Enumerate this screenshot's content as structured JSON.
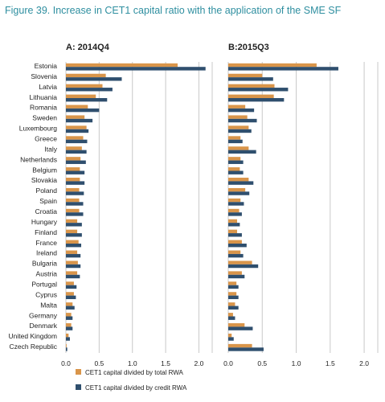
{
  "figure_title": "Figure 39. Increase in CET1 capital ratio with the application of the SME SF",
  "colors": {
    "total_rwa": "#d9954a",
    "credit_rwa": "#2f4f6e",
    "grid": "#c9c9c9",
    "title": "#2f8fa0"
  },
  "chart_data": [
    {
      "type": "bar",
      "orientation": "horizontal",
      "title": "A: 2014Q4",
      "categories": [
        "Estonia",
        "Slovenia",
        "Latvia",
        "Lithuania",
        "Romania",
        "Sweden",
        "Luxembourg",
        "Greece",
        "Italy",
        "Netherlands",
        "Belgium",
        "Slovakia",
        "Poland",
        "Spain",
        "Croatia",
        "Hungary",
        "Finland",
        "France",
        "Ireland",
        "Bulgaria",
        "Austria",
        "Portugal",
        "Cyprus",
        "Malta",
        "Germany",
        "Denmark",
        "United Kingdom",
        "Czech Republic"
      ],
      "series": [
        {
          "name": "CET1 capital divided by total RWA",
          "color": "#d9954a",
          "values": [
            1.68,
            0.6,
            0.55,
            0.45,
            0.33,
            0.28,
            0.31,
            0.26,
            0.24,
            0.22,
            0.21,
            0.21,
            0.2,
            0.2,
            0.2,
            0.17,
            0.17,
            0.19,
            0.17,
            0.18,
            0.17,
            0.12,
            0.12,
            0.1,
            0.08,
            0.08,
            0.04,
            0.01
          ]
        },
        {
          "name": "CET1 capital divided by credit RWA",
          "color": "#2f4f6e",
          "values": [
            2.1,
            0.84,
            0.7,
            0.62,
            0.5,
            0.4,
            0.34,
            0.32,
            0.31,
            0.3,
            0.28,
            0.28,
            0.27,
            0.26,
            0.26,
            0.24,
            0.24,
            0.23,
            0.22,
            0.22,
            0.21,
            0.16,
            0.15,
            0.13,
            0.1,
            0.1,
            0.06,
            0.02
          ]
        }
      ],
      "xlim": [
        0,
        2.2
      ],
      "xticks": [
        "0.0",
        "0.5",
        "1.0",
        "1.5",
        "2.0"
      ],
      "tick_values": [
        0,
        0.5,
        1.0,
        1.5,
        2.0
      ],
      "grid": true
    },
    {
      "type": "bar",
      "orientation": "horizontal",
      "title": "B:2015Q3",
      "categories": [
        "Estonia",
        "Slovenia",
        "Latvia",
        "Lithuania",
        "Romania",
        "Sweden",
        "Luxembourg",
        "Greece",
        "Italy",
        "Netherlands",
        "Belgium",
        "Slovakia",
        "Poland",
        "Spain",
        "Croatia",
        "Hungary",
        "Finland",
        "France",
        "Ireland",
        "Bulgaria",
        "Austria",
        "Portugal",
        "Cyprus",
        "Malta",
        "Germany",
        "Denmark",
        "United Kingdom",
        "Czech Republic"
      ],
      "series": [
        {
          "name": "CET1 capital divided by total RWA",
          "color": "#d9954a",
          "values": [
            1.3,
            0.5,
            0.68,
            0.67,
            0.25,
            0.28,
            0.3,
            0.18,
            0.3,
            0.18,
            0.17,
            0.3,
            0.25,
            0.18,
            0.16,
            0.13,
            0.13,
            0.2,
            0.18,
            0.35,
            0.2,
            0.12,
            0.12,
            0.1,
            0.07,
            0.24,
            0.05,
            0.35
          ]
        },
        {
          "name": "CET1 capital divided by credit RWA",
          "color": "#2f4f6e",
          "values": [
            1.62,
            0.66,
            0.88,
            0.82,
            0.38,
            0.42,
            0.34,
            0.21,
            0.41,
            0.22,
            0.22,
            0.37,
            0.31,
            0.23,
            0.2,
            0.17,
            0.2,
            0.27,
            0.22,
            0.44,
            0.24,
            0.15,
            0.15,
            0.15,
            0.1,
            0.36,
            0.08,
            0.52
          ]
        }
      ],
      "xlim": [
        0,
        2.2
      ],
      "xticks": [
        "0.0",
        "0.5",
        "1.0",
        "1.5",
        "2.0"
      ],
      "tick_values": [
        0,
        0.5,
        1.0,
        1.5,
        2.0
      ],
      "grid": true
    }
  ],
  "legend": [
    {
      "label": "CET1 capital divided by total RWA",
      "color": "#d9954a"
    },
    {
      "label": "CET1 capital divided by credit RWA",
      "color": "#2f4f6e"
    }
  ]
}
